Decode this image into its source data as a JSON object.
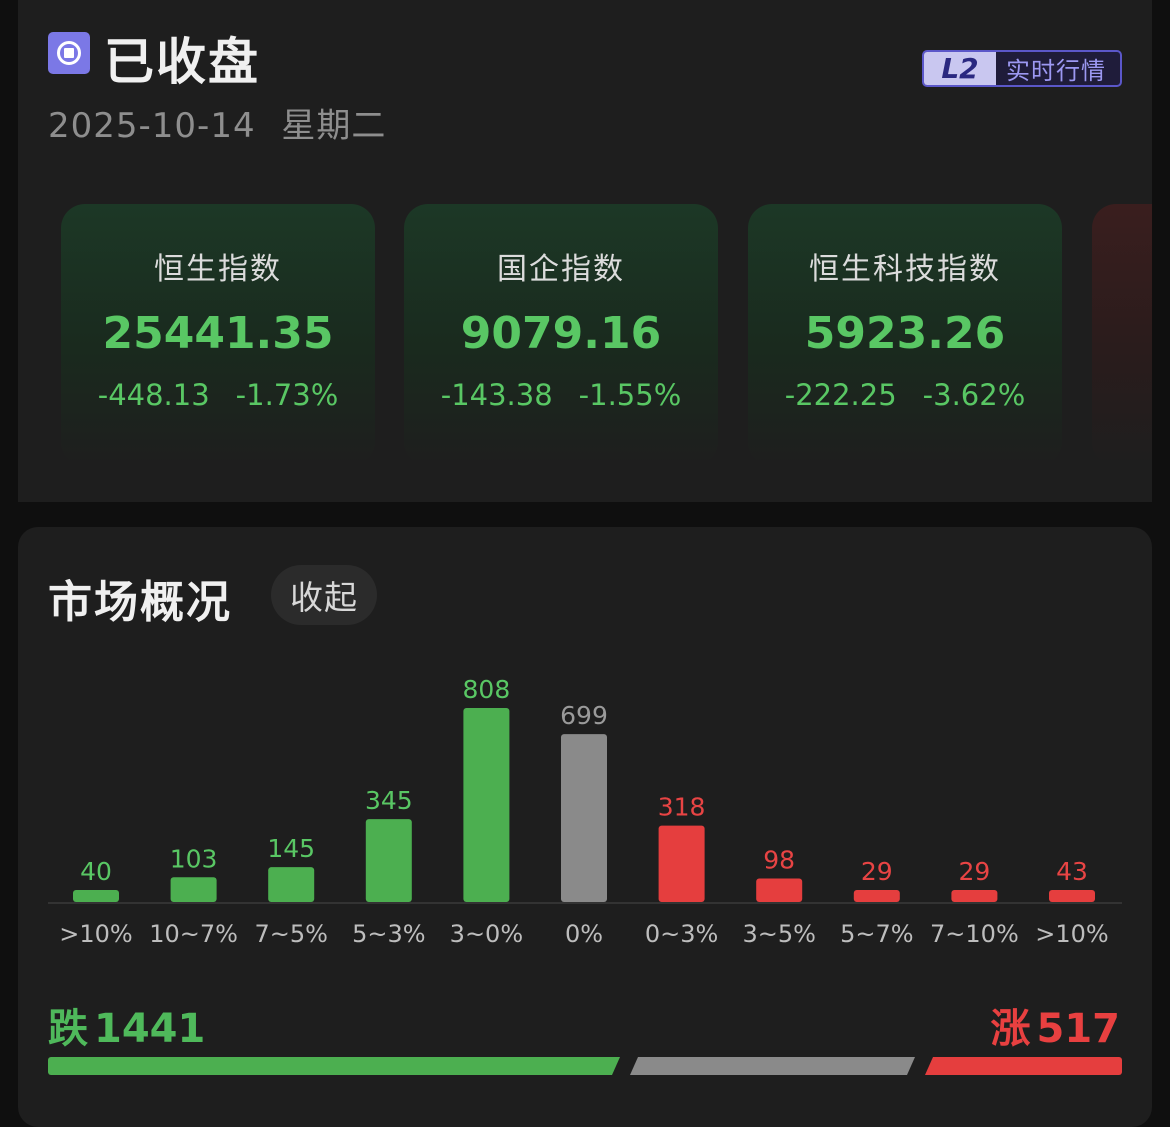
{
  "header": {
    "status": "已收盘",
    "date": "2025-10-14",
    "weekday": "星期二",
    "badge_l2": "L2",
    "badge_text": "实时行情"
  },
  "indices": [
    {
      "name": "恒生指数",
      "value": "25441.35",
      "change": "-448.13",
      "pct": "-1.73%"
    },
    {
      "name": "国企指数",
      "value": "9079.16",
      "change": "-143.38",
      "pct": "-1.55%"
    },
    {
      "name": "恒生科技指数",
      "value": "5923.26",
      "change": "-222.25",
      "pct": "-3.62%"
    }
  ],
  "market": {
    "title": "市场概况",
    "collapse_label": "收起",
    "fall_label": "跌",
    "fall_count": "1441",
    "rise_label": "涨",
    "rise_count": "517"
  },
  "colors": {
    "fall": "#4caf50",
    "flat": "#8a8a8a",
    "rise": "#e53e3e",
    "fall_text": "#59c764",
    "rise_text": "#e84444",
    "flat_text": "#9a9a9a"
  },
  "chart_data": {
    "type": "bar",
    "categories": [
      ">10%",
      "10~7%",
      "7~5%",
      "5~3%",
      "3~0%",
      "0%",
      "0~3%",
      "3~5%",
      "5~7%",
      "7~10%",
      ">10%"
    ],
    "values": [
      40,
      103,
      145,
      345,
      808,
      699,
      318,
      98,
      29,
      29,
      43
    ],
    "groups": [
      "fall",
      "fall",
      "fall",
      "fall",
      "fall",
      "flat",
      "rise",
      "rise",
      "rise",
      "rise",
      "rise"
    ],
    "title": "",
    "xlabel": "",
    "ylabel": "",
    "ylim": [
      0,
      808
    ],
    "grid": false,
    "legend": "none"
  }
}
